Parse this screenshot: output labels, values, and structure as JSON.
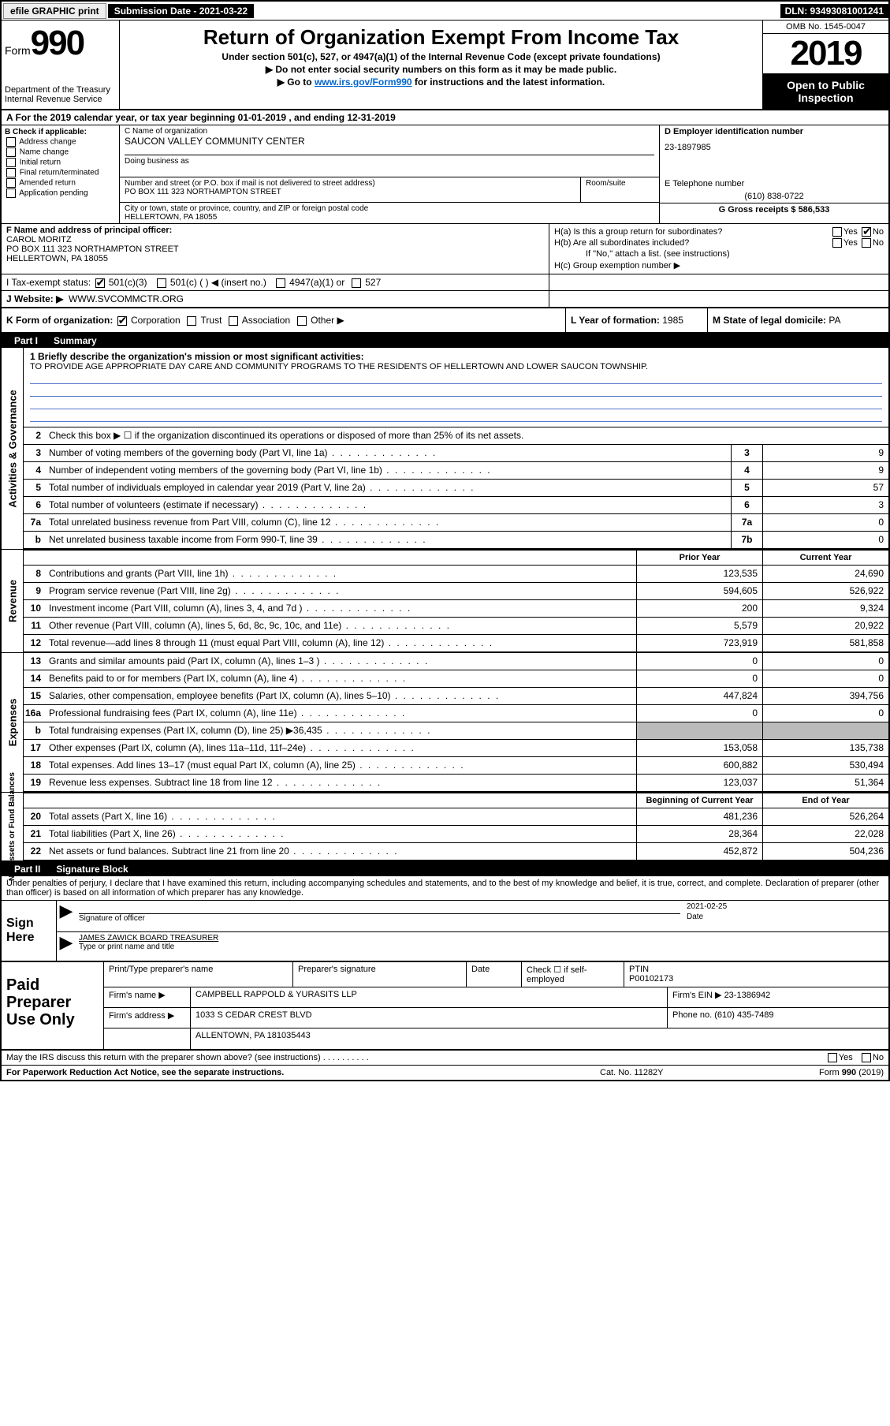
{
  "topbar": {
    "efile_btn": "efile GRAPHIC print",
    "sub_label": "Submission Date - 2021-03-22",
    "dln": "DLN: 93493081001241"
  },
  "header": {
    "form_word": "Form",
    "form_num": "990",
    "dept": "Department of the Treasury",
    "irs": "Internal Revenue Service",
    "title": "Return of Organization Exempt From Income Tax",
    "subtitle": "Under section 501(c), 527, or 4947(a)(1) of the Internal Revenue Code (except private foundations)",
    "line1": "▶ Do not enter social security numbers on this form as it may be made public.",
    "line2_pre": "▶ Go to ",
    "line2_link": "www.irs.gov/Form990",
    "line2_post": " for instructions and the latest information.",
    "omb": "OMB No. 1545-0047",
    "year": "2019",
    "open": "Open to Public Inspection"
  },
  "row_a": "A For the 2019 calendar year, or tax year beginning 01-01-2019   , and ending 12-31-2019",
  "col_b": {
    "hdr": "B Check if applicable:",
    "opts": [
      "Address change",
      "Name change",
      "Initial return",
      "Final return/terminated",
      "Amended return",
      "Application pending"
    ]
  },
  "col_c": {
    "name_lbl": "C Name of organization",
    "name_val": "SAUCON VALLEY COMMUNITY CENTER",
    "dba_lbl": "Doing business as",
    "street_lbl": "Number and street (or P.O. box if mail is not delivered to street address)",
    "street_val": "PO BOX 111 323 NORTHAMPTON STREET",
    "room_lbl": "Room/suite",
    "city_lbl": "City or town, state or province, country, and ZIP or foreign postal code",
    "city_val": "HELLERTOWN, PA  18055"
  },
  "col_d": {
    "lbl": "D Employer identification number",
    "val": "23-1897985"
  },
  "col_e": {
    "lbl": "E Telephone number",
    "val": "(610) 838-0722"
  },
  "col_g": {
    "lbl": "G Gross receipts $ ",
    "val": "586,533"
  },
  "col_f": {
    "lbl": "F  Name and address of principal officer:",
    "name": "CAROL MORITZ",
    "addr1": "PO BOX 111 323 NORTHAMPTON STREET",
    "addr2": "HELLERTOWN, PA  18055"
  },
  "col_h": {
    "ha": "H(a)  Is this a group return for subordinates?",
    "hb": "H(b)  Are all subordinates included?",
    "hb_note": "If \"No,\" attach a list. (see instructions)",
    "hc": "H(c)  Group exemption number ▶",
    "yes": "Yes",
    "no": "No"
  },
  "row_i": {
    "lbl": "I   Tax-exempt status:",
    "o1": "501(c)(3)",
    "o2": "501(c) (  ) ◀ (insert no.)",
    "o3": "4947(a)(1) or",
    "o4": "527"
  },
  "row_j": {
    "lbl": "J   Website: ▶",
    "val": "WWW.SVCOMMCTR.ORG"
  },
  "row_k": {
    "lbl": "K Form of organization:",
    "o1": "Corporation",
    "o2": "Trust",
    "o3": "Association",
    "o4": "Other ▶",
    "l_lbl": "L Year of formation: ",
    "l_val": "1985",
    "m_lbl": "M State of legal domicile: ",
    "m_val": "PA"
  },
  "part1": {
    "num": "Part I",
    "title": "Summary"
  },
  "q1": {
    "lbl": "1  Briefly describe the organization's mission or most significant activities:",
    "val": "TO PROVIDE AGE APPROPRIATE DAY CARE AND COMMUNITY PROGRAMS TO THE RESIDENTS OF HELLERTOWN AND LOWER SAUCON TOWNSHIP."
  },
  "vlabels": {
    "ag": "Activities & Governance",
    "rev": "Revenue",
    "exp": "Expenses",
    "na": "Net Assets or\nFund Balances"
  },
  "lines_ag": [
    {
      "n": "2",
      "t": "Check this box ▶ ☐  if the organization discontinued its operations or disposed of more than 25% of its net assets.",
      "box": "",
      "v": ""
    },
    {
      "n": "3",
      "t": "Number of voting members of the governing body (Part VI, line 1a)",
      "box": "3",
      "v": "9"
    },
    {
      "n": "4",
      "t": "Number of independent voting members of the governing body (Part VI, line 1b)",
      "box": "4",
      "v": "9"
    },
    {
      "n": "5",
      "t": "Total number of individuals employed in calendar year 2019 (Part V, line 2a)",
      "box": "5",
      "v": "57"
    },
    {
      "n": "6",
      "t": "Total number of volunteers (estimate if necessary)",
      "box": "6",
      "v": "3"
    },
    {
      "n": "7a",
      "t": "Total unrelated business revenue from Part VIII, column (C), line 12",
      "box": "7a",
      "v": "0"
    },
    {
      "n": "b",
      "t": "Net unrelated business taxable income from Form 990-T, line 39",
      "box": "7b",
      "v": "0"
    }
  ],
  "col_hdrs": {
    "py": "Prior Year",
    "cy": "Current Year"
  },
  "lines_rev": [
    {
      "n": "8",
      "t": "Contributions and grants (Part VIII, line 1h)",
      "py": "123,535",
      "cy": "24,690"
    },
    {
      "n": "9",
      "t": "Program service revenue (Part VIII, line 2g)",
      "py": "594,605",
      "cy": "526,922"
    },
    {
      "n": "10",
      "t": "Investment income (Part VIII, column (A), lines 3, 4, and 7d )",
      "py": "200",
      "cy": "9,324"
    },
    {
      "n": "11",
      "t": "Other revenue (Part VIII, column (A), lines 5, 6d, 8c, 9c, 10c, and 11e)",
      "py": "5,579",
      "cy": "20,922"
    },
    {
      "n": "12",
      "t": "Total revenue—add lines 8 through 11 (must equal Part VIII, column (A), line 12)",
      "py": "723,919",
      "cy": "581,858"
    }
  ],
  "lines_exp": [
    {
      "n": "13",
      "t": "Grants and similar amounts paid (Part IX, column (A), lines 1–3 )",
      "py": "0",
      "cy": "0"
    },
    {
      "n": "14",
      "t": "Benefits paid to or for members (Part IX, column (A), line 4)",
      "py": "0",
      "cy": "0"
    },
    {
      "n": "15",
      "t": "Salaries, other compensation, employee benefits (Part IX, column (A), lines 5–10)",
      "py": "447,824",
      "cy": "394,756"
    },
    {
      "n": "16a",
      "t": "Professional fundraising fees (Part IX, column (A), line 11e)",
      "py": "0",
      "cy": "0"
    },
    {
      "n": "b",
      "t": "Total fundraising expenses (Part IX, column (D), line 25) ▶36,435",
      "py": "",
      "cy": "",
      "grey": true
    },
    {
      "n": "17",
      "t": "Other expenses (Part IX, column (A), lines 11a–11d, 11f–24e)",
      "py": "153,058",
      "cy": "135,738"
    },
    {
      "n": "18",
      "t": "Total expenses. Add lines 13–17 (must equal Part IX, column (A), line 25)",
      "py": "600,882",
      "cy": "530,494"
    },
    {
      "n": "19",
      "t": "Revenue less expenses. Subtract line 18 from line 12",
      "py": "123,037",
      "cy": "51,364"
    }
  ],
  "col_hdrs2": {
    "py": "Beginning of Current Year",
    "cy": "End of Year"
  },
  "lines_na": [
    {
      "n": "20",
      "t": "Total assets (Part X, line 16)",
      "py": "481,236",
      "cy": "526,264"
    },
    {
      "n": "21",
      "t": "Total liabilities (Part X, line 26)",
      "py": "28,364",
      "cy": "22,028"
    },
    {
      "n": "22",
      "t": "Net assets or fund balances. Subtract line 21 from line 20",
      "py": "452,872",
      "cy": "504,236"
    }
  ],
  "part2": {
    "num": "Part II",
    "title": "Signature Block"
  },
  "sig": {
    "penalty": "Under penalties of perjury, I declare that I have examined this return, including accompanying schedules and statements, and to the best of my knowledge and belief, it is true, correct, and complete. Declaration of preparer (other than officer) is based on all information of which preparer has any knowledge.",
    "here": "Sign Here",
    "sig_lbl": "Signature of officer",
    "date_lbl": "Date",
    "date_val": "2021-02-25",
    "name_val": "JAMES ZAWICK  BOARD TREASURER",
    "name_lbl": "Type or print name and title"
  },
  "prep": {
    "title": "Paid Preparer Use Only",
    "r1_c1": "Print/Type preparer's name",
    "r1_c2": "Preparer's signature",
    "r1_c3": "Date",
    "r1_c4_pre": "Check ☐ if self-employed",
    "r1_c5_lbl": "PTIN",
    "r1_c5_val": "P00102173",
    "r2_lbl": "Firm's name    ▶",
    "r2_val": "CAMPBELL RAPPOLD & YURASITS LLP",
    "r2_ein_lbl": "Firm's EIN ▶ ",
    "r2_ein_val": "23-1386942",
    "r3_lbl": "Firm's address ▶",
    "r3_val": "1033 S CEDAR CREST BLVD",
    "r3_ph_lbl": "Phone no. ",
    "r3_ph_val": "(610) 435-7489",
    "r4_val": "ALLENTOWN, PA  181035443"
  },
  "footer": {
    "discuss": "May the IRS discuss this return with the preparer shown above? (see instructions)",
    "yes": "Yes",
    "no": "No",
    "pra": "For Paperwork Reduction Act Notice, see the separate instructions.",
    "cat": "Cat. No. 11282Y",
    "form": "Form 990 (2019)"
  }
}
